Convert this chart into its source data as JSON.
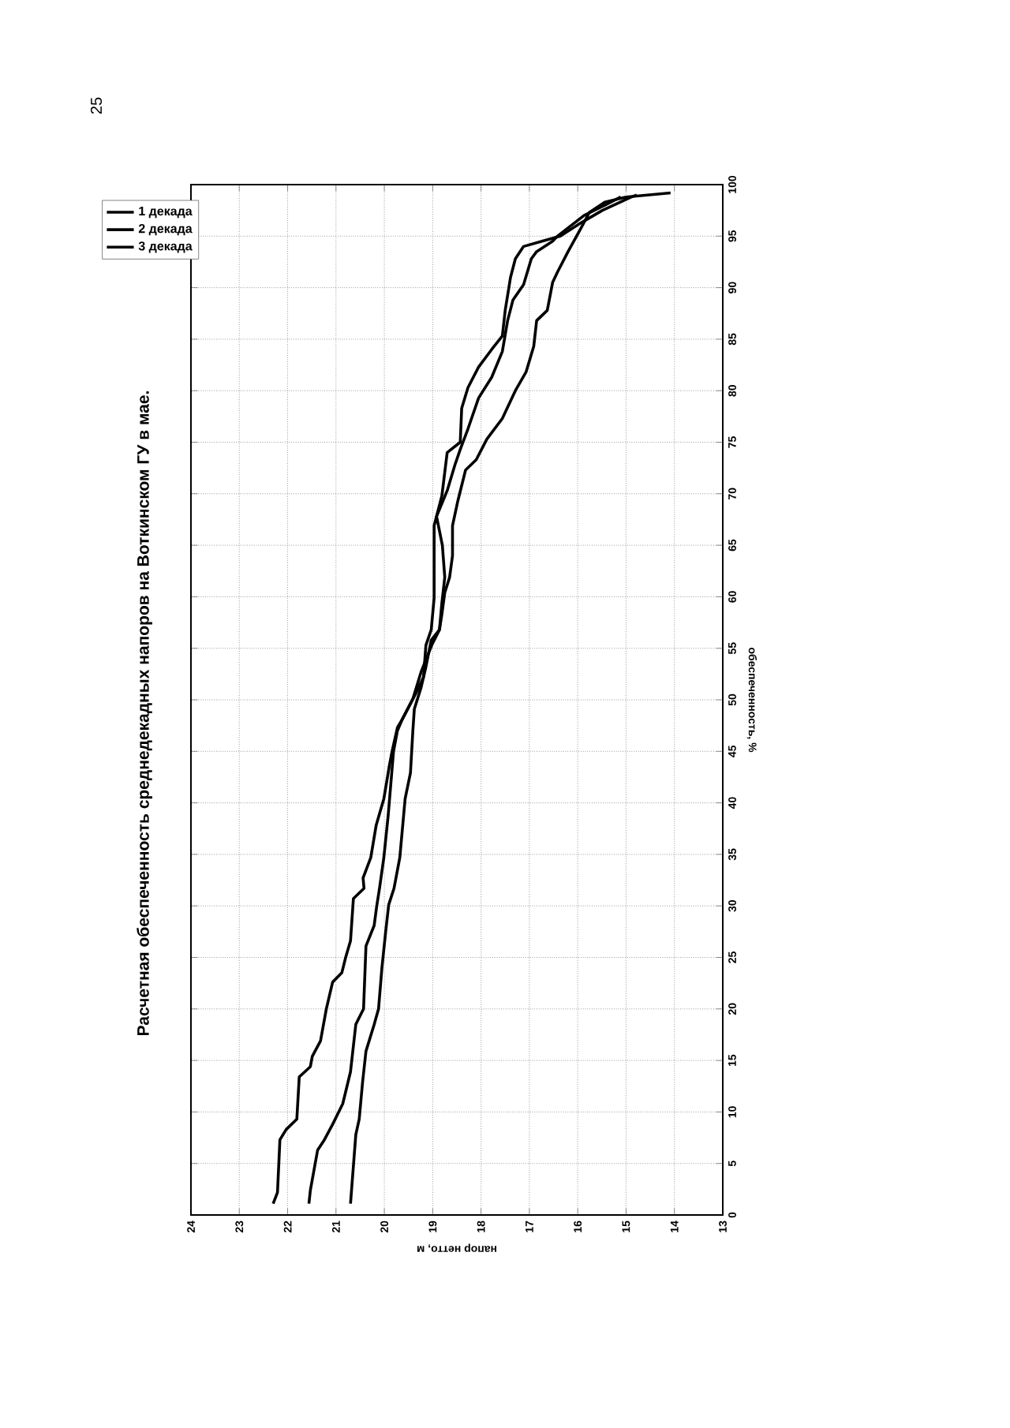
{
  "chart_data": {
    "type": "line",
    "title": "Расчетная обеспеченность среднедекадных напоров на Воткинском ГУ в мае.",
    "xlabel": "напор нетто, м",
    "ylabel": "обеспеченность, %",
    "annotations": [
      "25"
    ],
    "ylim": [
      0,
      100
    ],
    "yticks": [
      0,
      5,
      10,
      15,
      20,
      25,
      30,
      35,
      40,
      45,
      50,
      55,
      60,
      65,
      70,
      75,
      80,
      85,
      90,
      95,
      100
    ],
    "xlim": [
      24,
      13
    ],
    "xticks": [
      24,
      23,
      22,
      21,
      20,
      19,
      18,
      17,
      16,
      15,
      14,
      13
    ],
    "grid": true,
    "legend": "top left",
    "marker": "none",
    "line_style": "solid",
    "series": [
      {
        "name": "1 декада",
        "color": "#000000",
        "values": [
          1.1,
          2.2,
          7.3,
          8.3,
          9.3,
          13.4,
          14.4,
          15.4,
          16.9,
          20,
          22.6,
          23.5,
          25,
          26.6,
          30.7,
          31.7,
          32.7,
          34.7,
          37.8,
          40.4,
          43.5,
          45,
          47.3,
          48.1,
          50.1,
          52.7,
          55.3,
          56.8,
          58.3,
          60.4,
          61.9,
          64,
          66.9,
          69.3,
          72.3,
          73.3,
          75.3,
          77.3,
          80,
          81.8,
          84.3,
          86.8,
          87.8,
          90.5,
          91.5,
          93.5,
          95.8,
          97.3,
          98.3,
          98.8,
          99.2
        ],
        "x": [
          22.3,
          22.21,
          22.16,
          22.03,
          21.81,
          21.76,
          21.53,
          21.49,
          21.32,
          21.2,
          21.07,
          20.88,
          20.8,
          20.7,
          20.64,
          20.42,
          20.44,
          20.28,
          20.17,
          20.01,
          19.9,
          19.84,
          19.73,
          19.63,
          19.41,
          19.24,
          19.02,
          18.86,
          18.81,
          18.75,
          18.65,
          18.59,
          18.59,
          18.48,
          18.32,
          18.1,
          17.88,
          17.56,
          17.29,
          17.07,
          16.91,
          16.85,
          16.63,
          16.52,
          16.42,
          16.2,
          15.93,
          15.76,
          15.44,
          15.0,
          14.08
        ]
      },
      {
        "name": "2 декада",
        "color": "#000000",
        "values": [
          1.1,
          2.4,
          6.3,
          7.3,
          8.8,
          10.8,
          13.9,
          18.5,
          20,
          26.1,
          28.1,
          29.9,
          31.7,
          34.7,
          38.8,
          45,
          47,
          48.1,
          50.6,
          52.2,
          55.3,
          56.8,
          59.9,
          66.9,
          69.8,
          74,
          75,
          78.3,
          80.3,
          82.3,
          84,
          85.3,
          87.8,
          91,
          92.8,
          94,
          94.5,
          95,
          96.3,
          97.5,
          98.8,
          99
        ],
        "x": [
          21.56,
          21.53,
          21.38,
          21.24,
          21.07,
          20.86,
          20.7,
          20.59,
          20.43,
          20.38,
          20.21,
          20.16,
          20.1,
          20.01,
          19.92,
          19.81,
          19.73,
          19.63,
          19.35,
          19.19,
          19.14,
          19.03,
          18.97,
          18.97,
          18.81,
          18.7,
          18.43,
          18.4,
          18.27,
          18.05,
          17.78,
          17.56,
          17.5,
          17.39,
          17.29,
          17.12,
          16.74,
          16.36,
          15.93,
          15.49,
          14.89,
          14.78
        ]
      },
      {
        "name": "3 декада",
        "color": "#000000",
        "values": [
          1.1,
          7.8,
          9.3,
          12.9,
          15.9,
          18.5,
          20,
          24,
          27.6,
          30.1,
          31.7,
          34.7,
          40.4,
          42.9,
          47,
          49.1,
          51.2,
          53.2,
          55.8,
          56.8,
          59.4,
          61.9,
          65,
          67.8,
          70.3,
          72.8,
          74.3,
          76.3,
          79.3,
          81.3,
          83.8,
          86.8,
          88.8,
          90.3,
          92.8,
          93.5,
          94.5,
          95,
          97,
          98,
          98.8
        ],
        "x": [
          20.7,
          20.59,
          20.52,
          20.45,
          20.38,
          20.21,
          20.12,
          20.05,
          19.97,
          19.91,
          19.8,
          19.68,
          19.57,
          19.46,
          19.41,
          19.38,
          19.24,
          19.14,
          19.03,
          18.86,
          18.81,
          18.75,
          18.8,
          18.92,
          18.7,
          18.54,
          18.43,
          18.27,
          18.05,
          17.78,
          17.56,
          17.45,
          17.34,
          17.12,
          16.96,
          16.85,
          16.52,
          16.42,
          15.87,
          15.44,
          15.11
        ]
      }
    ]
  }
}
